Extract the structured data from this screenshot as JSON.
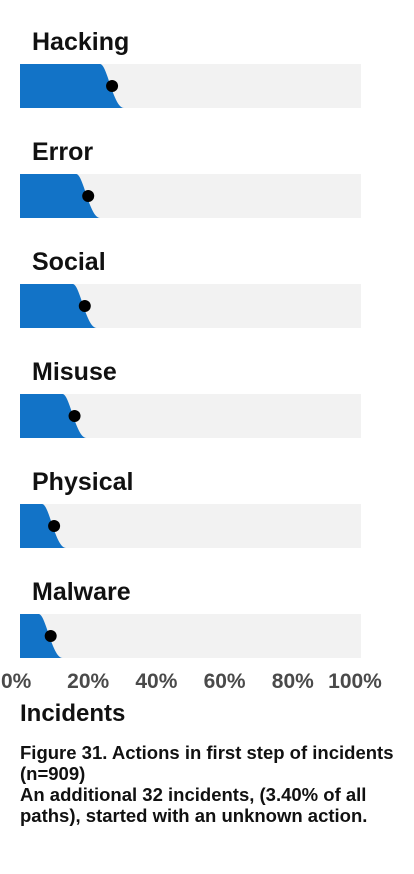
{
  "chart_data": {
    "type": "bar",
    "categories": [
      "Hacking",
      "Error",
      "Social",
      "Misuse",
      "Physical",
      "Malware"
    ],
    "values": [
      27,
      20,
      19,
      16,
      10,
      9
    ],
    "xlim": [
      0,
      100
    ],
    "x_ticks": [
      "0%",
      "20%",
      "40%",
      "60%",
      "80%",
      "100%"
    ],
    "xlabel": "Incidents",
    "colors": {
      "bar_fill": "#1273c7",
      "track": "#f2f2f2",
      "point": "#000000"
    }
  },
  "caption": {
    "title": "Figure 31. Actions in first step of incidents (n=909)",
    "note": "An additional 32 incidents, (3.40% of all paths), started with an unknown action."
  }
}
